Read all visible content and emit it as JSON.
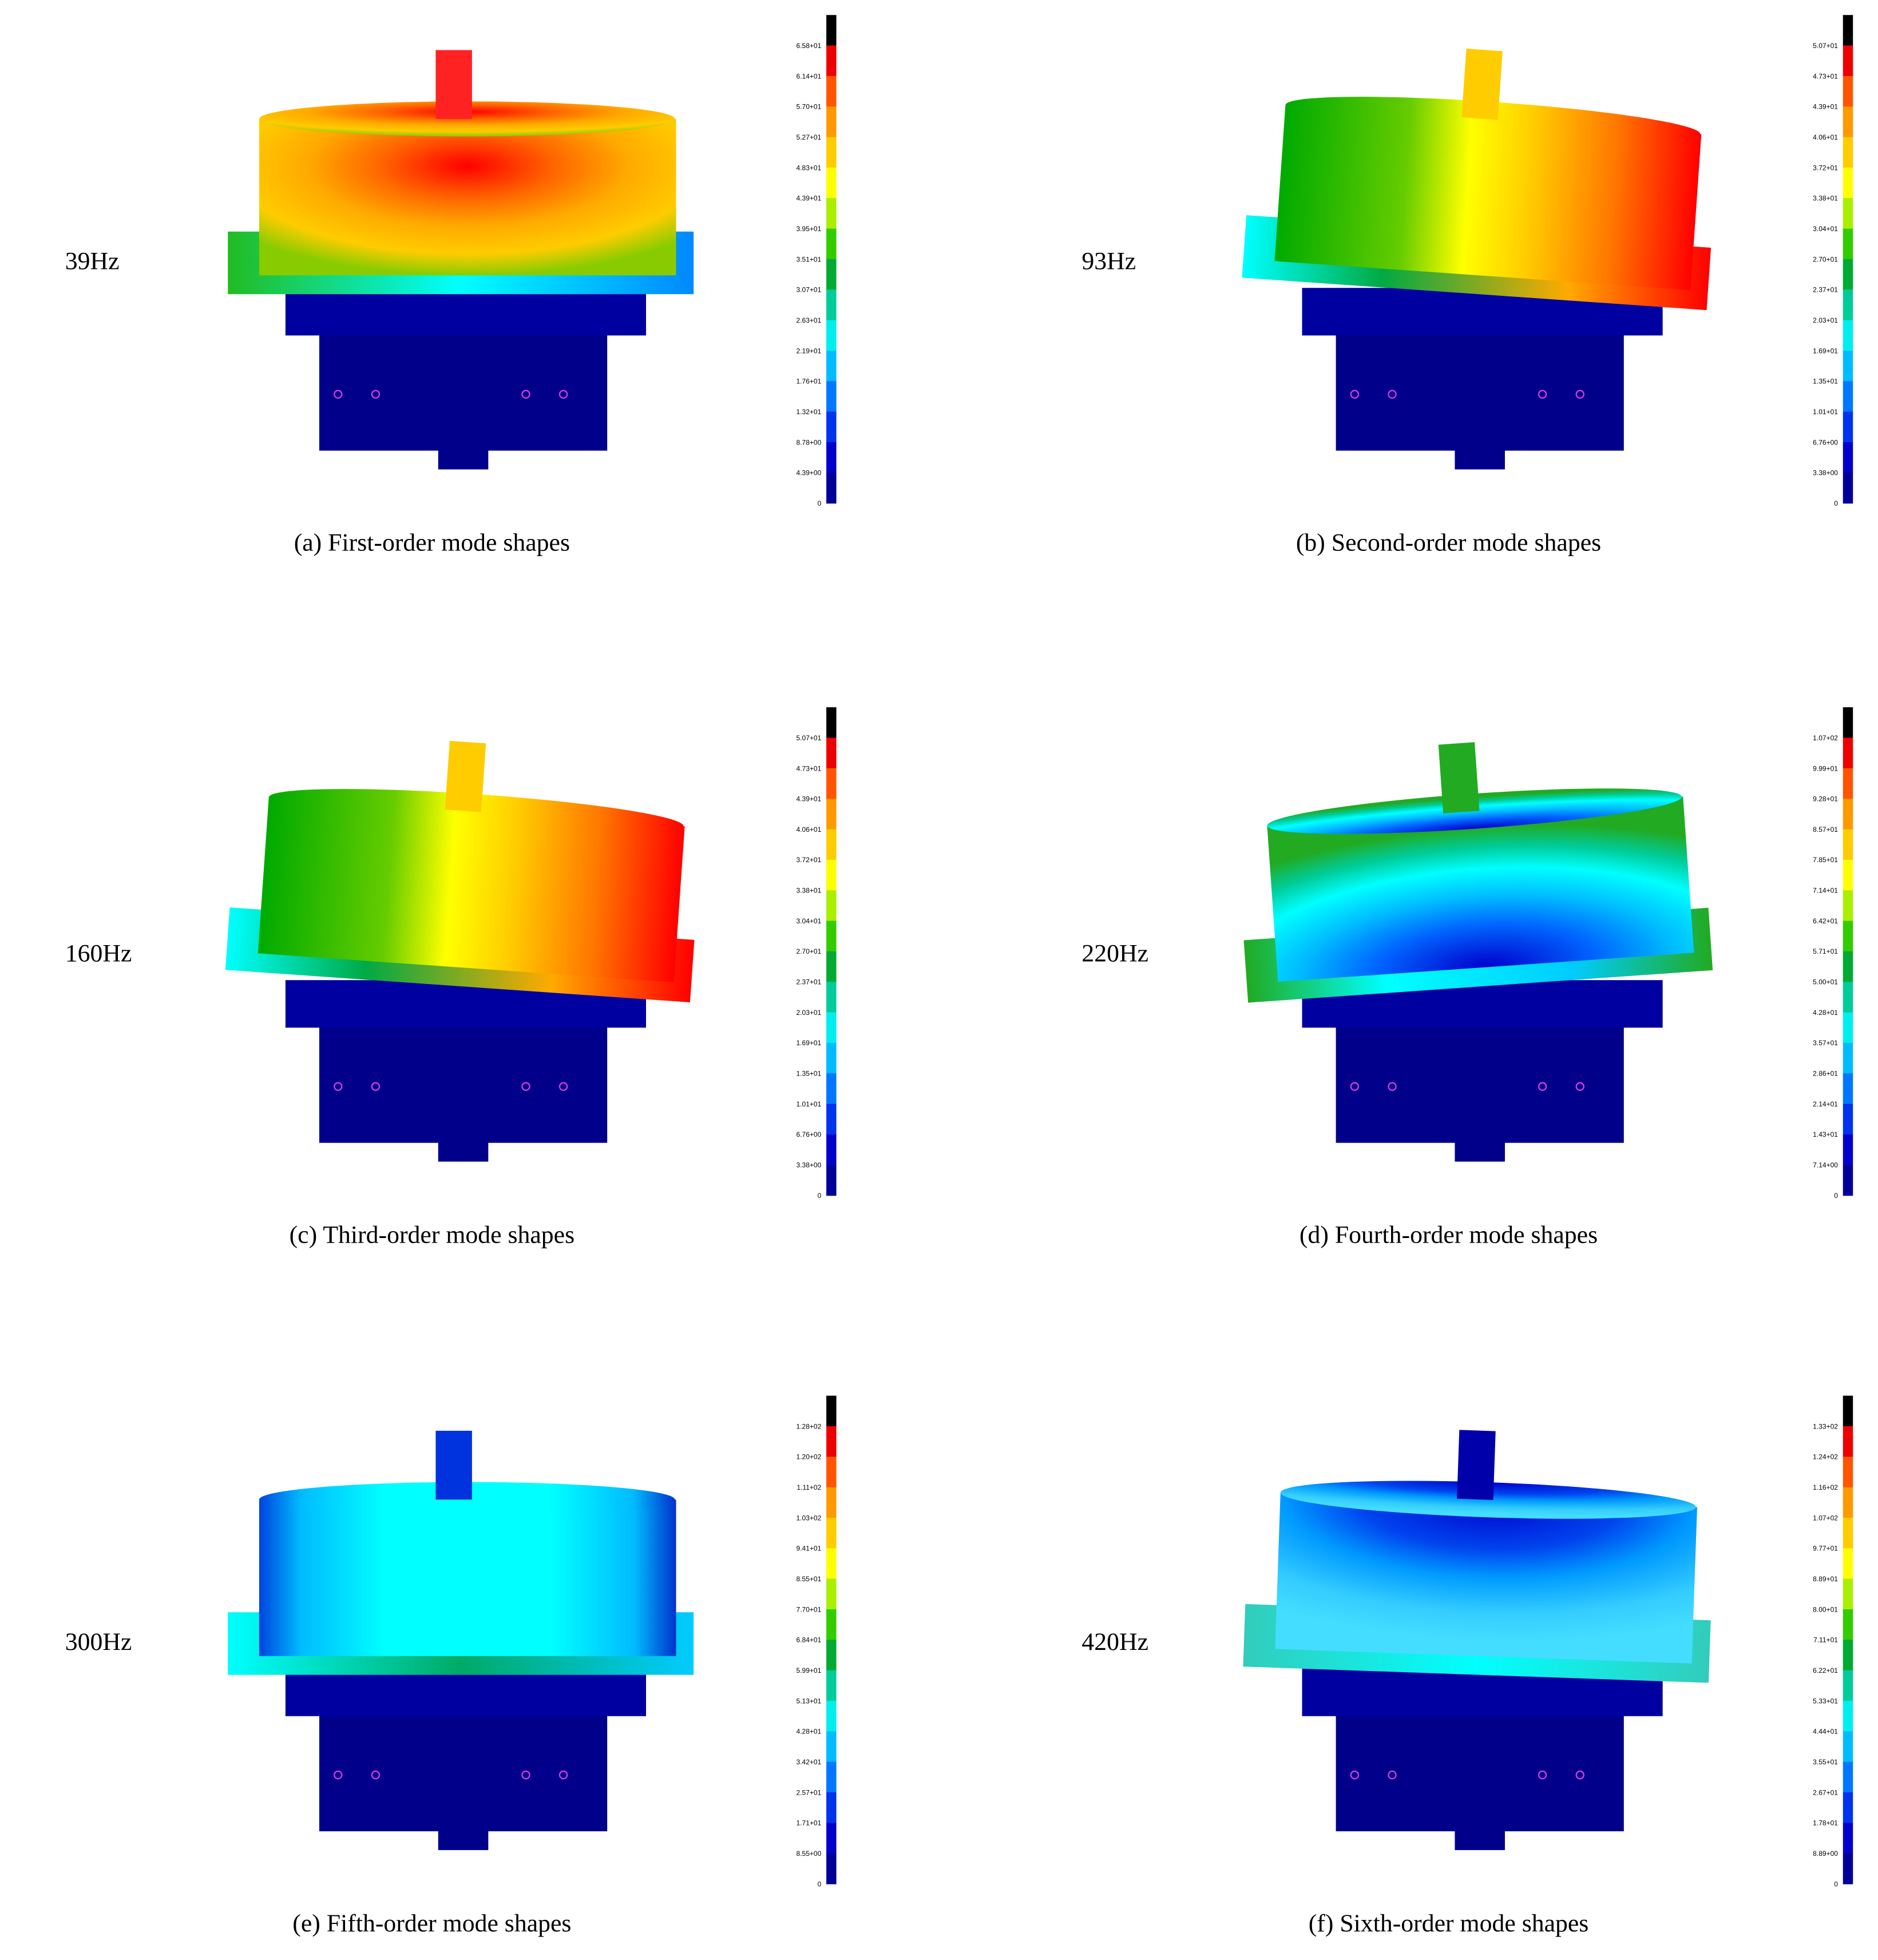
{
  "panels": [
    {
      "frequency": "39Hz",
      "caption": "(a) First-order mode shapes",
      "colorbar": [
        "6.58+01",
        "6.14+01",
        "5.70+01",
        "5.27+01",
        "4.83+01",
        "4.39+01",
        "3.95+01",
        "3.51+01",
        "3.07+01",
        "2.63+01",
        "2.19+01",
        "1.76+01",
        "1.32+01",
        "8.78+00",
        "4.39+00",
        "0"
      ]
    },
    {
      "frequency": "93Hz",
      "caption": "(b) Second-order mode shapes",
      "colorbar": [
        "5.07+01",
        "4.73+01",
        "4.39+01",
        "4.06+01",
        "3.72+01",
        "3.38+01",
        "3.04+01",
        "2.70+01",
        "2.37+01",
        "2.03+01",
        "1.69+01",
        "1.35+01",
        "1.01+01",
        "6.76+00",
        "3.38+00",
        "0"
      ]
    },
    {
      "frequency": "160Hz",
      "caption": "(c) Third-order mode shapes",
      "colorbar": [
        "5.07+01",
        "4.73+01",
        "4.39+01",
        "4.06+01",
        "3.72+01",
        "3.38+01",
        "3.04+01",
        "2.70+01",
        "2.37+01",
        "2.03+01",
        "1.69+01",
        "1.35+01",
        "1.01+01",
        "6.76+00",
        "3.38+00",
        "0"
      ]
    },
    {
      "frequency": "220Hz",
      "caption": "(d) Fourth-order mode shapes",
      "colorbar": [
        "1.07+02",
        "9.99+01",
        "9.28+01",
        "8.57+01",
        "7.85+01",
        "7.14+01",
        "6.42+01",
        "5.71+01",
        "5.00+01",
        "4.28+01",
        "3.57+01",
        "2.86+01",
        "2.14+01",
        "1.43+01",
        "7.14+00",
        "0"
      ]
    },
    {
      "frequency": "300Hz",
      "caption": "(e) Fifth-order mode shapes",
      "colorbar": [
        "1.28+02",
        "1.20+02",
        "1.11+02",
        "1.03+02",
        "9.41+01",
        "8.55+01",
        "7.70+01",
        "6.84+01",
        "5.99+01",
        "5.13+01",
        "4.28+01",
        "3.42+01",
        "2.57+01",
        "1.71+01",
        "8.55+00",
        "0"
      ]
    },
    {
      "frequency": "420Hz",
      "caption": "(f) Sixth-order mode shapes",
      "colorbar": [
        "1.33+02",
        "1.24+02",
        "1.16+02",
        "1.07+02",
        "9.77+01",
        "8.89+01",
        "8.00+01",
        "7.11+01",
        "6.22+01",
        "5.33+01",
        "4.44+01",
        "3.55+01",
        "2.67+01",
        "1.78+01",
        "8.89+00",
        "0"
      ]
    }
  ]
}
